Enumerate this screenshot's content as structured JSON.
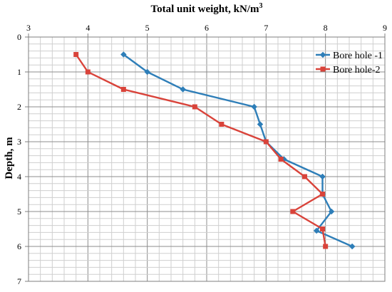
{
  "chart_data": {
    "type": "line",
    "title": "Total unit weight, kN/m",
    "title_superscript": "3",
    "xlabel": "Total unit weight, kN/m3",
    "ylabel": "Depth, m",
    "xlim": [
      3,
      9
    ],
    "ylim": [
      0,
      7
    ],
    "x_ticks": [
      "3",
      "4",
      "5",
      "6",
      "7",
      "8",
      "9"
    ],
    "y_ticks": [
      "0",
      "1",
      "2",
      "3",
      "4",
      "5",
      "6",
      "7"
    ],
    "x_axis_position": "top",
    "y_axis_inverted": true,
    "grid": true,
    "legend_position": "top-right",
    "series": [
      {
        "name": "Bore hole -1",
        "color": "#2E7EB8",
        "marker": "diamond",
        "points": [
          {
            "x": 4.6,
            "y": 0.5
          },
          {
            "x": 5.0,
            "y": 1.0
          },
          {
            "x": 5.6,
            "y": 1.5
          },
          {
            "x": 6.8,
            "y": 2.0
          },
          {
            "x": 6.9,
            "y": 2.5
          },
          {
            "x": 7.0,
            "y": 3.0
          },
          {
            "x": 7.3,
            "y": 3.5
          },
          {
            "x": 7.95,
            "y": 4.0
          },
          {
            "x": 7.95,
            "y": 4.5
          },
          {
            "x": 8.1,
            "y": 5.0
          },
          {
            "x": 7.85,
            "y": 5.55
          },
          {
            "x": 8.45,
            "y": 6.0
          }
        ]
      },
      {
        "name": "Bore hole-2",
        "color": "#D9433A",
        "marker": "square",
        "points": [
          {
            "x": 3.8,
            "y": 0.5
          },
          {
            "x": 4.0,
            "y": 1.0
          },
          {
            "x": 4.6,
            "y": 1.5
          },
          {
            "x": 5.8,
            "y": 2.0
          },
          {
            "x": 6.25,
            "y": 2.5
          },
          {
            "x": 7.0,
            "y": 3.0
          },
          {
            "x": 7.25,
            "y": 3.5
          },
          {
            "x": 7.65,
            "y": 4.0
          },
          {
            "x": 7.95,
            "y": 4.5
          },
          {
            "x": 7.45,
            "y": 5.0
          },
          {
            "x": 7.95,
            "y": 5.5
          },
          {
            "x": 8.0,
            "y": 6.0
          }
        ]
      }
    ]
  }
}
